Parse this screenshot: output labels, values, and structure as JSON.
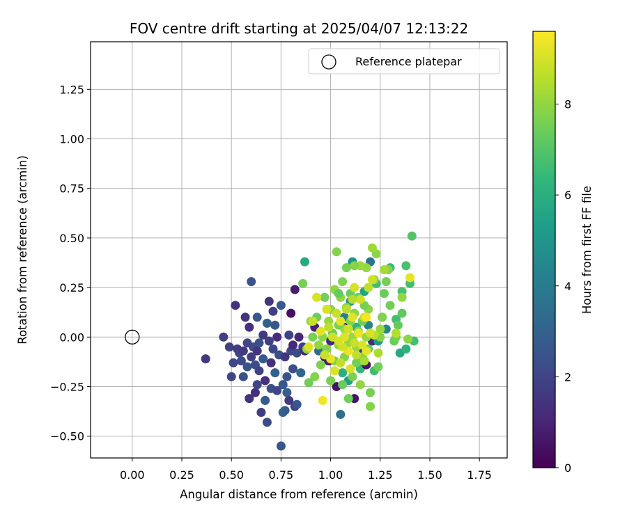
{
  "chart_data": {
    "type": "scatter",
    "title": "FOV centre drift starting at 2025/04/07 12:13:22",
    "xlabel": "Angular distance from reference (arcmin)",
    "ylabel": "Rotation from reference (arcmin)",
    "xlim": [
      -0.21,
      1.89
    ],
    "ylim": [
      -0.61,
      1.49
    ],
    "xticks": [
      0.0,
      0.25,
      0.5,
      0.75,
      1.0,
      1.25,
      1.5,
      1.75
    ],
    "xtick_labels": [
      "0.00",
      "0.25",
      "0.50",
      "0.75",
      "1.00",
      "1.25",
      "1.50",
      "1.75"
    ],
    "yticks": [
      -0.5,
      -0.25,
      0.0,
      0.25,
      0.5,
      0.75,
      1.0,
      1.25
    ],
    "ytick_labels": [
      "−0.50",
      "−0.25",
      "0.00",
      "0.25",
      "0.50",
      "0.75",
      "1.00",
      "1.25"
    ],
    "grid": true,
    "legend": {
      "placement": "top-right",
      "entries": [
        "Reference platepar"
      ]
    },
    "reference_point": {
      "x": 0.0,
      "y": 0.0,
      "label": "Reference platepar"
    },
    "colorbar": {
      "label": "Hours from first FF file",
      "colormap": "viridis",
      "range": [
        0,
        9.6
      ],
      "ticks": [
        0,
        2,
        4,
        6,
        8
      ],
      "tick_labels": [
        "0",
        "2",
        "4",
        "6",
        "8"
      ]
    },
    "colormap_stops": [
      "#440154",
      "#482878",
      "#3e4989",
      "#31688e",
      "#26828e",
      "#1f9e89",
      "#35b779",
      "#6ece58",
      "#b5de2b",
      "#fde725"
    ],
    "points": [
      [
        0.37,
        -0.11,
        1.6
      ],
      [
        0.46,
        0.0,
        1.8
      ],
      [
        0.49,
        -0.05,
        1.9
      ],
      [
        0.5,
        -0.2,
        2.0
      ],
      [
        0.51,
        -0.13,
        2.1
      ],
      [
        0.52,
        0.16,
        1.4
      ],
      [
        0.53,
        -0.06,
        1.7
      ],
      [
        0.54,
        -0.08,
        1.9
      ],
      [
        0.55,
        -0.12,
        2.2
      ],
      [
        0.56,
        -0.2,
        2.4
      ],
      [
        0.56,
        -0.07,
        1.6
      ],
      [
        0.57,
        0.1,
        1.5
      ],
      [
        0.58,
        -0.03,
        2.0
      ],
      [
        0.58,
        -0.15,
        2.5
      ],
      [
        0.59,
        0.05,
        1.3
      ],
      [
        0.59,
        -0.31,
        1.4
      ],
      [
        0.6,
        0.28,
        2.5
      ],
      [
        0.6,
        -0.1,
        1.8
      ],
      [
        0.61,
        -0.05,
        2.2
      ],
      [
        0.62,
        -0.14,
        2.3
      ],
      [
        0.62,
        -0.28,
        1.3
      ],
      [
        0.63,
        -0.07,
        1.5
      ],
      [
        0.63,
        -0.24,
        2.0
      ],
      [
        0.63,
        0.1,
        2.6
      ],
      [
        0.64,
        -0.17,
        1.9
      ],
      [
        0.64,
        -0.03,
        2.4
      ],
      [
        0.65,
        -0.38,
        1.7
      ],
      [
        0.66,
        -0.11,
        2.7
      ],
      [
        0.66,
        0.01,
        1.6
      ],
      [
        0.67,
        -0.32,
        2.8
      ],
      [
        0.67,
        -0.22,
        1.4
      ],
      [
        0.68,
        -0.43,
        2.2
      ],
      [
        0.68,
        0.07,
        2.9
      ],
      [
        0.69,
        0.18,
        1.5
      ],
      [
        0.69,
        -0.02,
        1.8
      ],
      [
        0.7,
        -0.13,
        1.4
      ],
      [
        0.7,
        -0.26,
        2.3
      ],
      [
        0.71,
        0.13,
        1.8
      ],
      [
        0.71,
        -0.06,
        2.1
      ],
      [
        0.72,
        0.06,
        2.6
      ],
      [
        0.72,
        -0.18,
        3.0
      ],
      [
        0.73,
        -0.27,
        2.0
      ],
      [
        0.73,
        0.0,
        1.2
      ],
      [
        0.74,
        -0.09,
        2.4
      ],
      [
        0.75,
        0.16,
        2.7
      ],
      [
        0.75,
        -0.55,
        2.6
      ],
      [
        0.76,
        -0.24,
        2.6
      ],
      [
        0.76,
        -0.38,
        3.1
      ],
      [
        0.77,
        -0.37,
        2.8
      ],
      [
        0.77,
        -0.1,
        1.5
      ],
      [
        0.78,
        -0.2,
        2.5
      ],
      [
        0.78,
        -0.28,
        2.9
      ],
      [
        0.79,
        0.01,
        1.9
      ],
      [
        0.79,
        -0.32,
        1.6
      ],
      [
        0.8,
        0.12,
        0.4
      ],
      [
        0.8,
        -0.07,
        2.1
      ],
      [
        0.81,
        -0.16,
        2.3
      ],
      [
        0.81,
        -0.04,
        1.1
      ],
      [
        0.82,
        0.24,
        0.8
      ],
      [
        0.82,
        -0.35,
        1.8
      ],
      [
        0.83,
        -0.08,
        2.2
      ],
      [
        0.83,
        -0.34,
        2.6
      ],
      [
        0.84,
        0.0,
        1.0
      ],
      [
        0.85,
        -0.18,
        3.1
      ],
      [
        0.86,
        -0.05,
        1.9
      ],
      [
        0.87,
        -0.07,
        1.2
      ],
      [
        0.87,
        0.38,
        5.8
      ],
      [
        0.88,
        -0.06,
        1.7
      ],
      [
        0.92,
        0.05,
        0.9
      ],
      [
        0.94,
        -0.07,
        3.4
      ],
      [
        0.97,
        -0.1,
        0.8
      ],
      [
        0.99,
        -0.12,
        0.7
      ],
      [
        1.0,
        -0.02,
        1.1
      ],
      [
        1.03,
        -0.25,
        0.5
      ],
      [
        1.05,
        -0.39,
        3.5
      ],
      [
        1.06,
        -0.18,
        6.0
      ],
      [
        1.07,
        0.1,
        4.2
      ],
      [
        1.08,
        0.05,
        0.9
      ],
      [
        1.09,
        -0.22,
        5.4
      ],
      [
        1.1,
        0.18,
        4.8
      ],
      [
        1.11,
        0.38,
        5.0
      ],
      [
        1.12,
        -0.31,
        0.6
      ],
      [
        1.13,
        0.05,
        6.2
      ],
      [
        1.14,
        -0.07,
        1.3
      ],
      [
        1.15,
        -0.16,
        6.4
      ],
      [
        1.17,
        0.23,
        5.6
      ],
      [
        1.18,
        -0.14,
        0.5
      ],
      [
        1.19,
        0.06,
        4.3
      ],
      [
        1.2,
        0.38,
        3.6
      ],
      [
        1.21,
        -0.02,
        1.2
      ],
      [
        1.22,
        -0.17,
        6.6
      ],
      [
        1.23,
        0.27,
        6.6
      ],
      [
        1.24,
        -0.02,
        5.2
      ],
      [
        1.26,
        0.1,
        4.9
      ],
      [
        1.28,
        0.04,
        4.4
      ],
      [
        1.3,
        0.35,
        6.5
      ],
      [
        1.33,
        0.09,
        6.7
      ],
      [
        1.35,
        -0.08,
        5.7
      ],
      [
        1.36,
        0.23,
        6.8
      ],
      [
        1.38,
        0.36,
        6.8
      ],
      [
        1.4,
        0.27,
        6.7
      ],
      [
        1.41,
        0.51,
        7.0
      ],
      [
        1.42,
        -0.02,
        6.7
      ],
      [
        1.38,
        -0.06,
        6.2
      ],
      [
        1.36,
        0.12,
        7.2
      ],
      [
        1.34,
        0.06,
        7.3
      ],
      [
        1.32,
        -0.02,
        7.4
      ],
      [
        1.3,
        0.16,
        7.5
      ],
      [
        1.29,
        0.34,
        7.8
      ],
      [
        1.28,
        0.28,
        7.6
      ],
      [
        1.27,
        0.22,
        7.4
      ],
      [
        1.26,
        0.1,
        7.7
      ],
      [
        1.25,
        0.0,
        7.8
      ],
      [
        1.24,
        -0.15,
        7.5
      ],
      [
        1.23,
        0.42,
        7.9
      ],
      [
        1.22,
        0.29,
        8.0
      ],
      [
        1.21,
        0.45,
        8.2
      ],
      [
        1.2,
        -0.35,
        7.8
      ],
      [
        1.2,
        -0.28,
        7.6
      ],
      [
        1.19,
        0.14,
        7.9
      ],
      [
        1.19,
        -0.06,
        7.4
      ],
      [
        1.18,
        0.35,
        8.0
      ],
      [
        1.18,
        0.0,
        8.1
      ],
      [
        1.17,
        0.16,
        7.6
      ],
      [
        1.16,
        0.08,
        7.5
      ],
      [
        1.16,
        -0.1,
        7.8
      ],
      [
        1.15,
        0.36,
        8.2
      ],
      [
        1.15,
        -0.24,
        8.0
      ],
      [
        1.14,
        0.2,
        7.4
      ],
      [
        1.14,
        0.03,
        7.7
      ],
      [
        1.13,
        -0.05,
        8.0
      ],
      [
        1.13,
        -0.13,
        7.5
      ],
      [
        1.12,
        0.36,
        7.8
      ],
      [
        1.12,
        0.12,
        7.9
      ],
      [
        1.11,
        0.0,
        8.1
      ],
      [
        1.11,
        -0.2,
        7.6
      ],
      [
        1.1,
        0.22,
        7.4
      ],
      [
        1.1,
        0.08,
        7.8
      ],
      [
        1.09,
        -0.03,
        8.0
      ],
      [
        1.09,
        -0.31,
        7.5
      ],
      [
        1.08,
        0.35,
        7.6
      ],
      [
        1.08,
        0.15,
        7.9
      ],
      [
        1.07,
        0.04,
        8.2
      ],
      [
        1.07,
        -0.1,
        7.8
      ],
      [
        1.06,
        -0.24,
        7.4
      ],
      [
        1.06,
        0.28,
        7.7
      ],
      [
        1.05,
        0.2,
        8.0
      ],
      [
        1.04,
        0.06,
        7.6
      ],
      [
        1.04,
        -0.04,
        7.9
      ],
      [
        1.03,
        0.43,
        7.8
      ],
      [
        1.03,
        0.12,
        7.5
      ],
      [
        1.02,
        0.24,
        8.0
      ],
      [
        1.02,
        -0.12,
        7.7
      ],
      [
        1.01,
        0.02,
        7.4
      ],
      [
        1.0,
        0.14,
        7.9
      ],
      [
        1.0,
        -0.22,
        7.6
      ],
      [
        0.99,
        0.08,
        8.1
      ],
      [
        0.98,
        -0.06,
        7.8
      ],
      [
        0.97,
        0.2,
        7.5
      ],
      [
        0.96,
        0.0,
        7.9
      ],
      [
        0.95,
        -0.14,
        7.7
      ],
      [
        0.94,
        -0.04,
        8.0
      ],
      [
        0.93,
        0.1,
        7.4
      ],
      [
        0.92,
        -0.2,
        7.8
      ],
      [
        0.91,
        0.0,
        7.6
      ],
      [
        0.9,
        0.08,
        7.9
      ],
      [
        0.89,
        -0.23,
        7.5
      ],
      [
        0.88,
        -0.06,
        8.0
      ],
      [
        0.86,
        0.27,
        7.6
      ],
      [
        1.04,
        0.22,
        7.3
      ],
      [
        1.36,
        0.2,
        8.0
      ],
      [
        1.39,
        -0.01,
        7.9
      ],
      [
        1.33,
        0.0,
        7.6
      ],
      [
        1.27,
        0.34,
        8.3
      ],
      [
        1.25,
        0.04,
        8.1
      ],
      [
        1.22,
        0.01,
        8.6
      ],
      [
        1.21,
        0.29,
        8.9
      ],
      [
        1.2,
        0.02,
        9.0
      ],
      [
        1.19,
        0.25,
        8.7
      ],
      [
        1.18,
        -0.07,
        9.2
      ],
      [
        1.17,
        0.1,
        8.8
      ],
      [
        1.16,
        -0.04,
        9.1
      ],
      [
        1.15,
        0.19,
        8.9
      ],
      [
        1.14,
        0.02,
        9.3
      ],
      [
        1.13,
        -0.09,
        8.7
      ],
      [
        1.12,
        0.25,
        9.0
      ],
      [
        1.12,
        -0.03,
        8.8
      ],
      [
        1.11,
        0.1,
        9.2
      ],
      [
        1.1,
        -0.16,
        9.0
      ],
      [
        1.09,
        0.04,
        8.9
      ],
      [
        1.09,
        -0.07,
        9.3
      ],
      [
        1.08,
        0.14,
        8.6
      ],
      [
        1.07,
        0.0,
        9.1
      ],
      [
        1.06,
        -0.05,
        8.9
      ],
      [
        1.05,
        0.08,
        9.2
      ],
      [
        1.05,
        -0.13,
        8.7
      ],
      [
        1.04,
        -0.02,
        9.0
      ],
      [
        1.03,
        0.12,
        8.8
      ],
      [
        1.02,
        -0.17,
        9.1
      ],
      [
        1.01,
        0.0,
        8.9
      ],
      [
        1.0,
        -0.11,
        9.3
      ],
      [
        0.99,
        0.05,
        8.7
      ],
      [
        0.98,
        0.14,
        9.0
      ],
      [
        0.97,
        -0.09,
        8.8
      ],
      [
        0.96,
        -0.32,
        9.4
      ],
      [
        0.95,
        0.03,
        9.2
      ],
      [
        0.93,
        0.2,
        9.0
      ],
      [
        0.91,
        0.08,
        8.8
      ],
      [
        0.89,
        -0.05,
        9.1
      ],
      [
        1.18,
        0.1,
        9.5
      ],
      [
        1.4,
        0.3,
        9.2
      ],
      [
        1.33,
        0.02,
        8.5
      ],
      [
        1.24,
        -0.08,
        8.4
      ],
      [
        1.11,
        0.19,
        8.5
      ],
      [
        1.17,
        -0.12,
        8.3
      ]
    ]
  }
}
